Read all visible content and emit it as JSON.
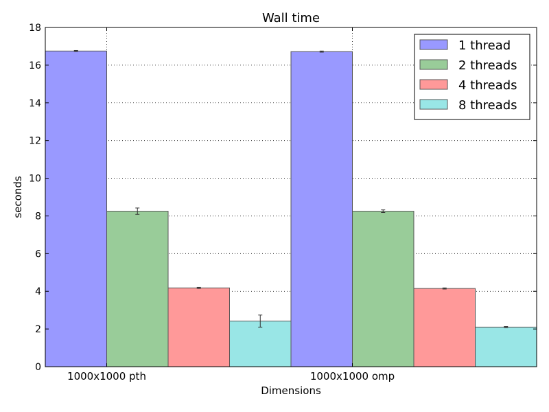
{
  "chart_data": {
    "type": "bar",
    "title": "Wall time",
    "xlabel": "Dimensions",
    "ylabel": "seconds",
    "ylim": [
      0,
      18
    ],
    "yticks": [
      0,
      2,
      4,
      6,
      8,
      10,
      12,
      14,
      16,
      18
    ],
    "ytick_labels": [
      "0",
      "2",
      "4",
      "6",
      "8",
      "10",
      "12",
      "14",
      "16",
      "18"
    ],
    "categories": [
      "1000x1000 pth",
      "1000x1000 omp"
    ],
    "grid": true,
    "legend_position": "top-right",
    "series": [
      {
        "name": "1 thread",
        "color": "#9999ff",
        "values": [
          16.75,
          16.72
        ],
        "errors": [
          0.03,
          0.03
        ]
      },
      {
        "name": "2 threads",
        "color": "#99cc99",
        "values": [
          8.25,
          8.25
        ],
        "errors": [
          0.17,
          0.07
        ]
      },
      {
        "name": "4 threads",
        "color": "#ff9999",
        "values": [
          4.18,
          4.15
        ],
        "errors": [
          0.03,
          0.03
        ]
      },
      {
        "name": "8 threads",
        "color": "#99e6e6",
        "values": [
          2.42,
          2.1
        ],
        "errors": [
          0.32,
          0.03
        ]
      }
    ]
  }
}
